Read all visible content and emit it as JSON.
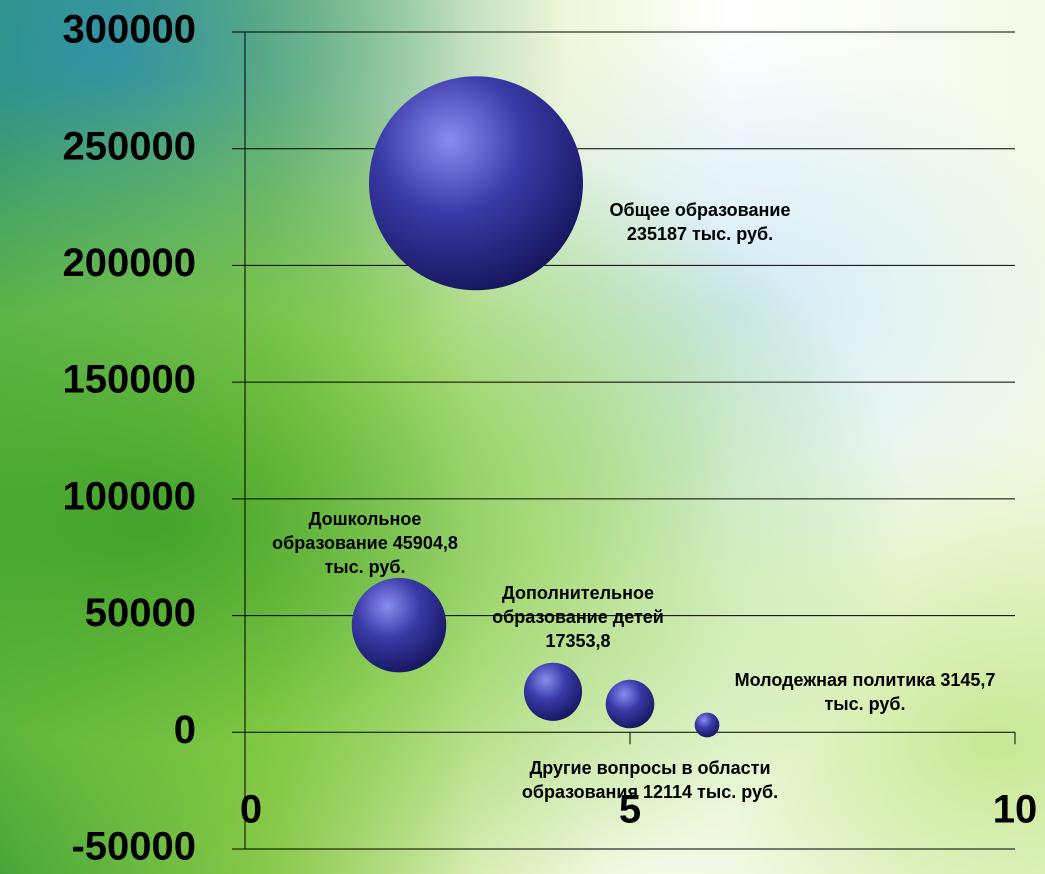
{
  "chart_data": {
    "type": "bubble",
    "categories": [
      "Общее образование",
      "Дошкольное образование",
      "Дополнительное образование детей",
      "Другие вопросы в области образования",
      "Молодежная политика"
    ],
    "x": [
      3,
      2,
      4,
      5,
      6
    ],
    "values": [
      235187,
      45904.8,
      17353.8,
      12114,
      3145.7
    ],
    "sizes": [
      235187,
      45904.8,
      17353.8,
      12114,
      3145.7
    ],
    "value_labels": [
      "235187 тыс. руб.",
      "45904,8 тыс. руб.",
      "17353,8",
      "12114 тыс. руб.",
      "3145,7 тыс. руб."
    ],
    "color": "#2a2a8c",
    "xlim": [
      0,
      10
    ],
    "xticks": [
      0,
      5,
      10
    ],
    "ylim": [
      -50000,
      300000
    ],
    "yticks": [
      -50000,
      0,
      50000,
      100000,
      150000,
      200000,
      250000,
      300000
    ],
    "grid": true
  }
}
